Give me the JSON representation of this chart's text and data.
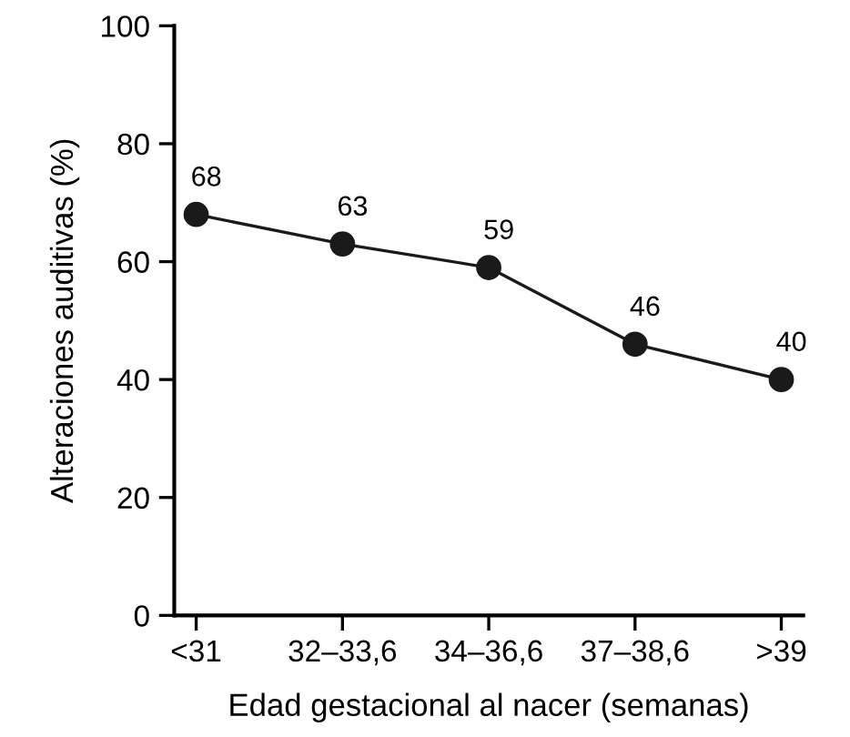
{
  "chart_data": {
    "type": "line",
    "xlabel": "Edad gestacional al nacer (semanas)",
    "ylabel": "Alteraciones auditivas (%)",
    "categories": [
      "<31",
      "32–33,6",
      "34–36,6",
      "37–38,6",
      ">39"
    ],
    "series": [
      {
        "color": "#1a1a1a",
        "values": [
          68,
          63,
          59,
          46,
          40
        ]
      }
    ],
    "ylim": [
      0,
      100
    ],
    "yticks": [
      0,
      20,
      40,
      60,
      80,
      100
    ],
    "data_labels": true,
    "marker": "circle",
    "line_style": "solid",
    "grid": false,
    "legend": false
  }
}
